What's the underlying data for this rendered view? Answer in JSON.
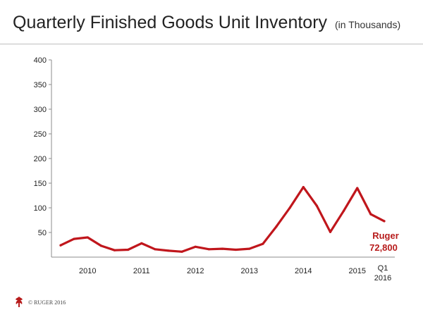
{
  "slide": {
    "title": "Quarterly Finished Goods Unit Inventory",
    "title_suffix": "(in Thousands)",
    "footer": "© RUGER 2016"
  },
  "chart_data": {
    "type": "line",
    "title": "Quarterly Finished Goods Unit Inventory",
    "subtitle": "(in Thousands)",
    "xlabel": "",
    "ylabel": "",
    "ylim": [
      0,
      400
    ],
    "yticks": [
      50,
      100,
      150,
      200,
      250,
      300,
      350,
      400
    ],
    "grid": false,
    "color": "#c0161c",
    "x": [
      "2010 Q1",
      "2010 Q2",
      "2010 Q3",
      "2010 Q4",
      "2011 Q1",
      "2011 Q2",
      "2011 Q3",
      "2011 Q4",
      "2012 Q1",
      "2012 Q2",
      "2012 Q3",
      "2012 Q4",
      "2013 Q1",
      "2013 Q2",
      "2013 Q3",
      "2013 Q4",
      "2014 Q1",
      "2014 Q2",
      "2014 Q3",
      "2014 Q4",
      "2015 Q1",
      "2015 Q2",
      "2015 Q3",
      "2015 Q4",
      "2016 Q1"
    ],
    "x_tick_labels": [
      {
        "label": "2010",
        "at": 2
      },
      {
        "label": "2011",
        "at": 6
      },
      {
        "label": "2012",
        "at": 10
      },
      {
        "label": "2013",
        "at": 14
      },
      {
        "label": "2014",
        "at": 18
      },
      {
        "label": "2015",
        "at": 22
      },
      {
        "label": "Q1",
        "label2": "2016",
        "at": 24
      }
    ],
    "series": [
      {
        "values": [
          24,
          37,
          40,
          23,
          14,
          15,
          28,
          16,
          13,
          11,
          21,
          16,
          17,
          15,
          17,
          27,
          62,
          100,
          142,
          104,
          51,
          94,
          140,
          87,
          73
        ]
      }
    ],
    "annotation": {
      "line1": "Ruger",
      "line2": "72,800"
    }
  }
}
